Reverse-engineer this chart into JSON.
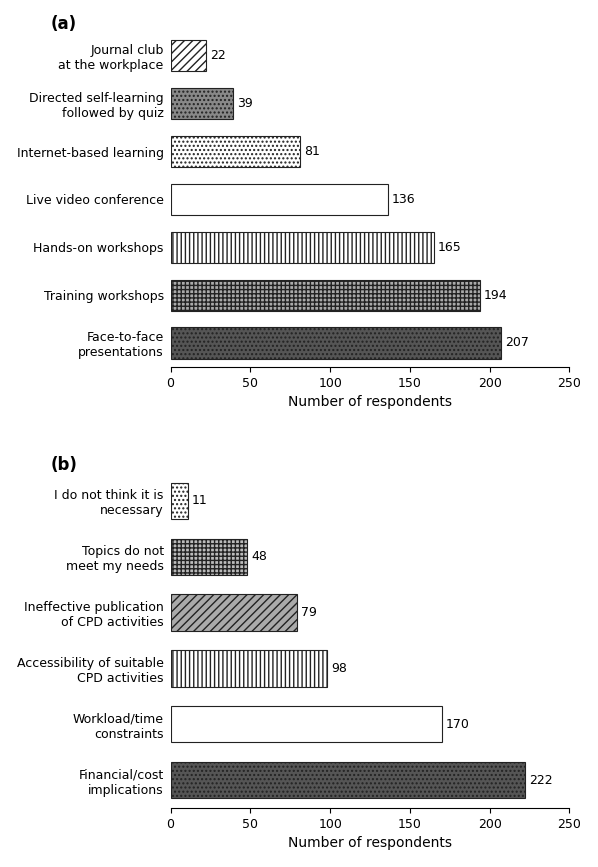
{
  "chart_a": {
    "labels": [
      "Journal club\nat the workplace",
      "Directed self-learning\nfollowed by quiz",
      "Internet-based learning",
      "Live video conference",
      "Hands-on workshops",
      "Training workshops",
      "Face-to-face\npresentations"
    ],
    "values": [
      22,
      39,
      81,
      136,
      165,
      194,
      207
    ],
    "patterns": [
      {
        "hatch": "////",
        "fc": "white"
      },
      {
        "hatch": "....",
        "fc": "#888888"
      },
      {
        "hatch": "....",
        "fc": "white"
      },
      {
        "hatch": "====",
        "fc": "white"
      },
      {
        "hatch": "||||",
        "fc": "white"
      },
      {
        "hatch": "++++",
        "fc": "#aaaaaa"
      },
      {
        "hatch": "....",
        "fc": "#555555"
      }
    ],
    "xlim": [
      0,
      250
    ],
    "xlabel": "Number of respondents",
    "panel_label": "(a)"
  },
  "chart_b": {
    "labels": [
      "I do not think it is\nnecessary",
      "Topics do not\nmeet my needs",
      "Ineffective publication\nof CPD activities",
      "Accessibility of suitable\nCPD activities",
      "Workload/time\nconstraints",
      "Financial/cost\nimplications"
    ],
    "values": [
      11,
      48,
      79,
      98,
      170,
      222
    ],
    "patterns": [
      {
        "hatch": "....",
        "fc": "white"
      },
      {
        "hatch": "++++",
        "fc": "#bbbbbb"
      },
      {
        "hatch": "////",
        "fc": "#aaaaaa"
      },
      {
        "hatch": "||||",
        "fc": "white"
      },
      {
        "hatch": "====",
        "fc": "white"
      },
      {
        "hatch": "....",
        "fc": "#555555"
      }
    ],
    "xlim": [
      0,
      250
    ],
    "xlabel": "Number of respondents",
    "panel_label": "(b)"
  }
}
